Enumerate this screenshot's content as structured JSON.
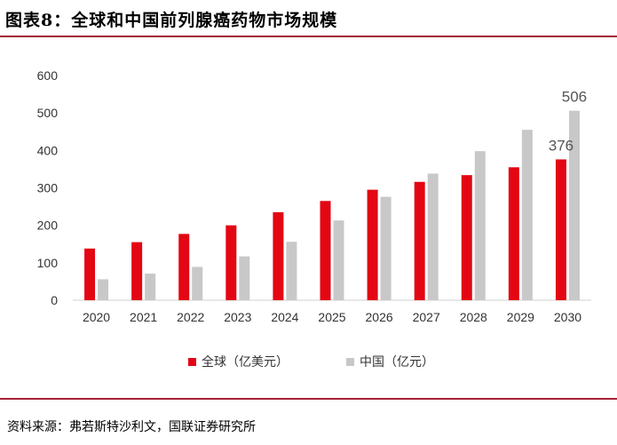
{
  "title": "图表8：全球和中国前列腺癌药物市场规模",
  "source": "资料来源：弗若斯特沙利文，国联证券研究所",
  "colors": {
    "accent_rule": "#a32035",
    "global": "#e30613",
    "china": "#c8c8c8"
  },
  "chart_data": {
    "type": "bar",
    "categories": [
      "2020",
      "2021",
      "2022",
      "2023",
      "2024",
      "2025",
      "2026",
      "2027",
      "2028",
      "2029",
      "2030"
    ],
    "series": [
      {
        "name": "全球（亿美元）",
        "values": [
          138,
          155,
          177,
          200,
          235,
          265,
          295,
          316,
          334,
          355,
          376
        ]
      },
      {
        "name": "中国（亿元）",
        "values": [
          56,
          71,
          89,
          117,
          156,
          213,
          276,
          338,
          398,
          455,
          506
        ]
      }
    ],
    "yticks": [
      "0",
      "100",
      "200",
      "300",
      "400",
      "500",
      "600"
    ],
    "ylim": [
      0,
      600
    ],
    "grid": false,
    "legend_position": "bottom",
    "data_labels": [
      {
        "series": 0,
        "index": 10,
        "text": "376"
      },
      {
        "series": 1,
        "index": 10,
        "text": "506"
      }
    ]
  }
}
